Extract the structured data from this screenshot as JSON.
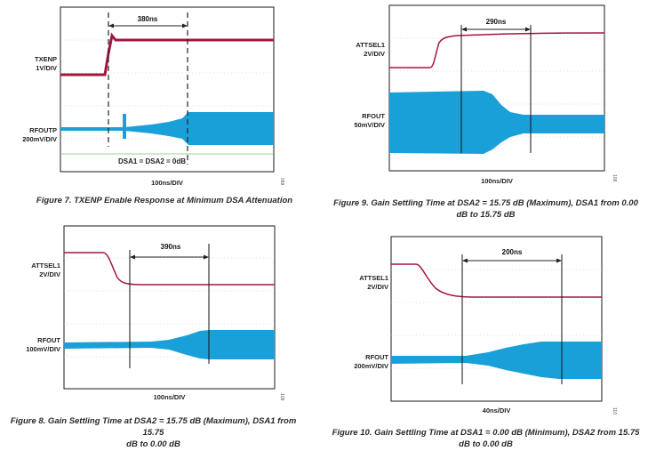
{
  "figures": [
    {
      "id": "fig7",
      "caption": [
        "Figure 7. TXENP Enable Response at Minimum DSA Attenuation"
      ],
      "ch1_label": [
        "TXENP",
        "1V/DIV"
      ],
      "ch2_label": [
        "RFOUTP",
        "200mV/DIV"
      ],
      "measurement": "380ns",
      "note": "DSA1 = DSA2 = 0dB",
      "timebase": "100ns/DIV",
      "fig_code": "069"
    },
    {
      "id": "fig9",
      "caption": [
        "Figure 9. Gain Settling Time at DSA2 = 15.75 dB (Maximum), DSA1 from 0.00",
        "dB to 15.75 dB"
      ],
      "ch1_label": [
        "ATTSEL1",
        "2V/DIV"
      ],
      "ch2_label": [
        "RFOUT",
        "50mV/DIV"
      ],
      "measurement": "290ns",
      "note": "",
      "timebase": "100ns/DIV",
      "fig_code": "109"
    },
    {
      "id": "fig8",
      "caption": [
        "Figure 8. Gain Settling Time at DSA2 = 15.75 dB (Maximum), DSA1 from 15.75",
        "dB to 0.00 dB"
      ],
      "ch1_label": [
        "ATTSEL1",
        "2V/DIV"
      ],
      "ch2_label": [
        "RFOUT",
        "100mV/DIV"
      ],
      "measurement": "390ns",
      "note": "",
      "timebase": "100ns/DIV",
      "fig_code": "108"
    },
    {
      "id": "fig10",
      "caption": [
        "Figure 10. Gain Settling Time at DSA1 = 0.00 dB (Minimum), DSA2 from 15.75",
        "dB to 0.00 dB"
      ],
      "ch1_label": [
        "ATTSEL1",
        "2V/DIV"
      ],
      "ch2_label": [
        "RFOUT",
        "200mV/DIV"
      ],
      "measurement": "200ns",
      "note": "",
      "timebase": "40ns/DIV",
      "fig_code": "110"
    }
  ],
  "colors": {
    "control_trace": "#a3163f",
    "rf_trace": "#1aa0d8",
    "frame": "#1a1a1a"
  }
}
